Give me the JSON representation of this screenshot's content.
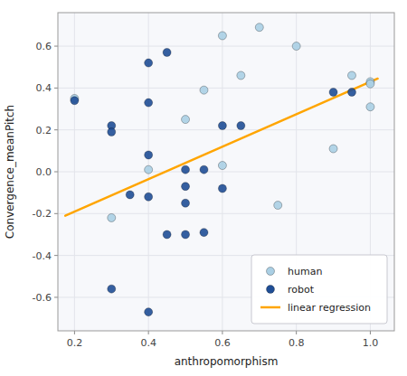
{
  "chart_data": {
    "type": "scatter",
    "xlabel": "anthropomorphism",
    "ylabel": "Convergence_meanPitch",
    "xlim": [
      0.155,
      1.065
    ],
    "ylim": [
      -0.76,
      0.76
    ],
    "xticks": [
      0.2,
      0.4,
      0.6,
      0.8,
      {
        "value": 1.0,
        "label": "1.0"
      }
    ],
    "yticks": [
      -0.6,
      -0.4,
      -0.2,
      {
        "value": 0.0,
        "label": "0.0"
      },
      0.2,
      0.4,
      0.6
    ],
    "grid": true,
    "legend": "lower right",
    "series": [
      {
        "name": "human",
        "type": "scatter",
        "color": "#aacfe4",
        "x": [
          0.2,
          0.3,
          0.4,
          0.5,
          0.55,
          0.6,
          0.6,
          0.65,
          0.7,
          0.75,
          0.8,
          0.9,
          0.95,
          1.0,
          1.0,
          1.0
        ],
        "values": [
          0.35,
          -0.22,
          0.01,
          0.25,
          0.39,
          0.65,
          0.03,
          0.46,
          0.69,
          -0.16,
          0.6,
          0.11,
          0.46,
          0.43,
          0.42,
          0.31
        ]
      },
      {
        "name": "robot",
        "type": "scatter",
        "color": "#1f4e96",
        "x": [
          0.2,
          0.3,
          0.3,
          0.35,
          0.4,
          0.4,
          0.4,
          0.4,
          0.45,
          0.45,
          0.5,
          0.5,
          0.5,
          0.5,
          0.55,
          0.55,
          0.6,
          0.6,
          0.65,
          0.9,
          0.95,
          0.3,
          0.4
        ],
        "values": [
          0.34,
          0.22,
          0.19,
          -0.11,
          0.52,
          0.33,
          0.08,
          -0.12,
          0.57,
          -0.3,
          0.01,
          -0.07,
          -0.15,
          -0.3,
          0.01,
          -0.29,
          0.22,
          -0.08,
          0.22,
          0.38,
          0.38,
          -0.56,
          -0.67
        ]
      },
      {
        "name": "linear regression",
        "type": "line",
        "color": "#FFA500",
        "x": [
          0.175,
          1.02
        ],
        "values": [
          -0.21,
          0.445
        ]
      }
    ]
  }
}
